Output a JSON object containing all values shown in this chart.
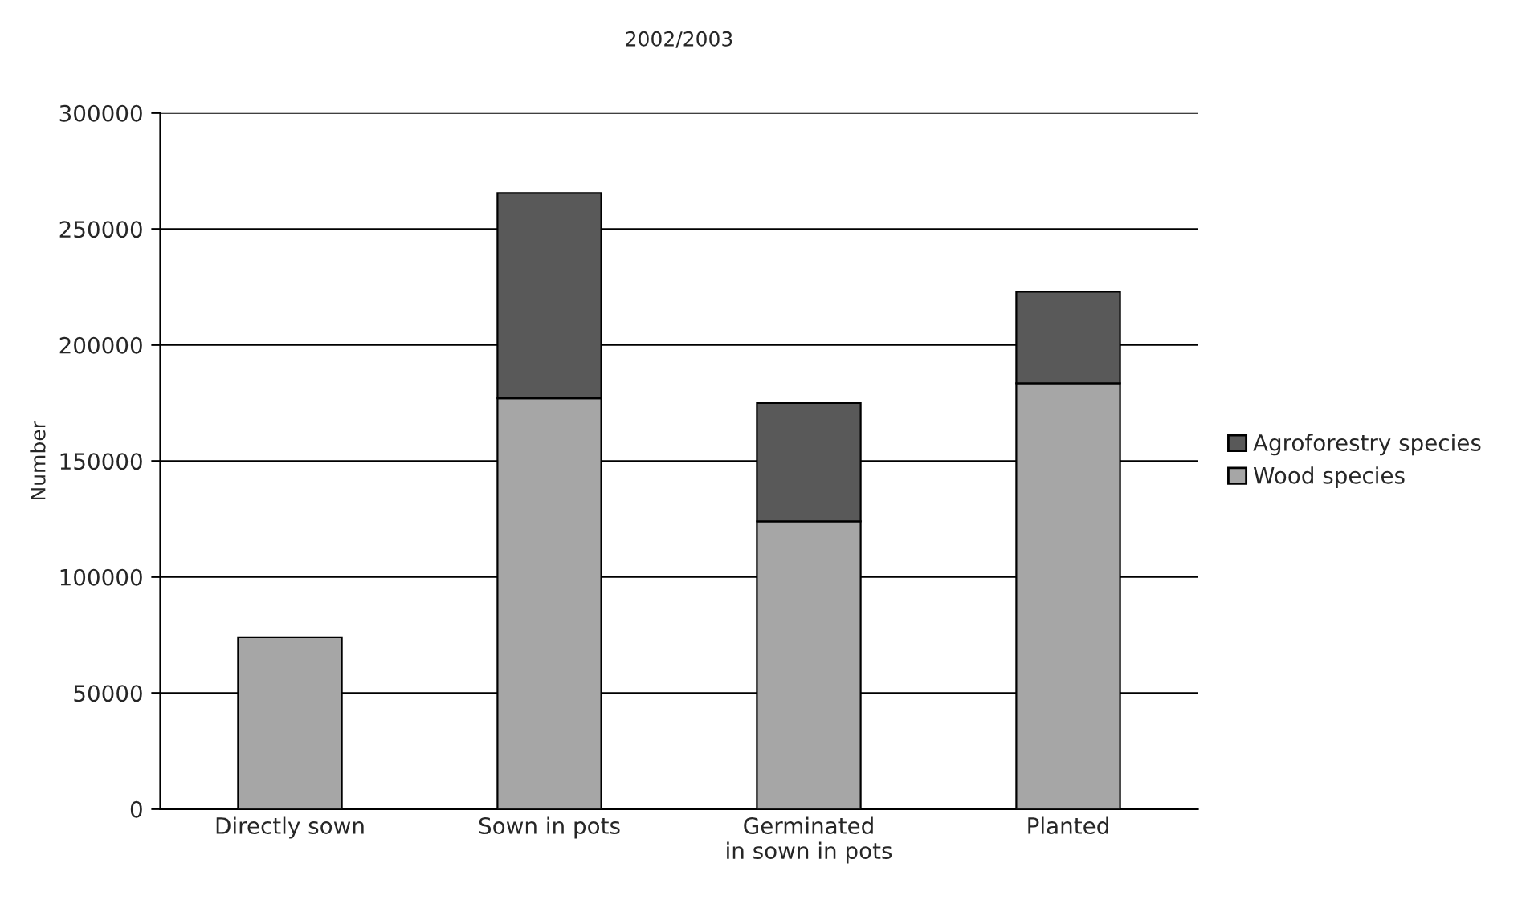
{
  "chart_data": {
    "type": "bar",
    "title": "2002/2003",
    "ylabel": "Number",
    "categories": [
      "Directly sown",
      "Sown in pots",
      "Germinated\nin sown in pots",
      "Planted"
    ],
    "stacked": true,
    "series": [
      {
        "name": "Wood species",
        "color": "#a6a6a6",
        "values": [
          74000,
          177000,
          124000,
          183500
        ]
      },
      {
        "name": "Agroforestry species",
        "color": "#595959",
        "values": [
          null,
          88500,
          51000,
          39500
        ]
      }
    ],
    "ylim": [
      0,
      300000
    ],
    "yticks": [
      0,
      50000,
      100000,
      150000,
      200000,
      250000,
      300000
    ],
    "grid": "y",
    "legend": "right"
  }
}
